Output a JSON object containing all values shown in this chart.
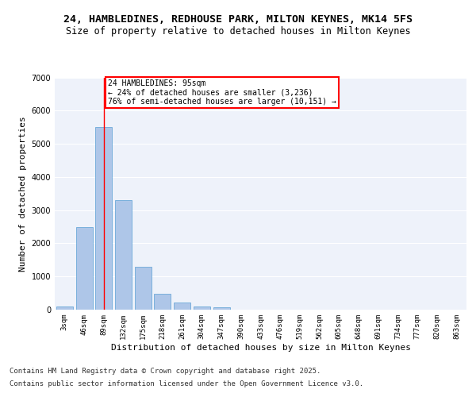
{
  "title": "24, HAMBLEDINES, REDHOUSE PARK, MILTON KEYNES, MK14 5FS",
  "subtitle": "Size of property relative to detached houses in Milton Keynes",
  "xlabel": "Distribution of detached houses by size in Milton Keynes",
  "ylabel": "Number of detached properties",
  "categories": [
    "3sqm",
    "46sqm",
    "89sqm",
    "132sqm",
    "175sqm",
    "218sqm",
    "261sqm",
    "304sqm",
    "347sqm",
    "390sqm",
    "433sqm",
    "476sqm",
    "519sqm",
    "562sqm",
    "605sqm",
    "648sqm",
    "691sqm",
    "734sqm",
    "777sqm",
    "820sqm",
    "863sqm"
  ],
  "values": [
    100,
    2500,
    5500,
    3300,
    1300,
    480,
    220,
    90,
    60,
    0,
    0,
    0,
    0,
    0,
    0,
    0,
    0,
    0,
    0,
    0,
    0
  ],
  "bar_color": "#aec6e8",
  "bar_edge_color": "#5a9fd4",
  "vline_x": 2,
  "vline_color": "red",
  "annotation_text": "24 HAMBLEDINES: 95sqm\n← 24% of detached houses are smaller (3,236)\n76% of semi-detached houses are larger (10,151) →",
  "annotation_box_color": "white",
  "annotation_box_edge": "red",
  "ylim": [
    0,
    7000
  ],
  "yticks": [
    0,
    1000,
    2000,
    3000,
    4000,
    5000,
    6000,
    7000
  ],
  "background_color": "#eef2fa",
  "footer1": "Contains HM Land Registry data © Crown copyright and database right 2025.",
  "footer2": "Contains public sector information licensed under the Open Government Licence v3.0.",
  "title_fontsize": 9.5,
  "subtitle_fontsize": 8.5,
  "label_fontsize": 8,
  "tick_fontsize": 6.5,
  "footer_fontsize": 6.5
}
